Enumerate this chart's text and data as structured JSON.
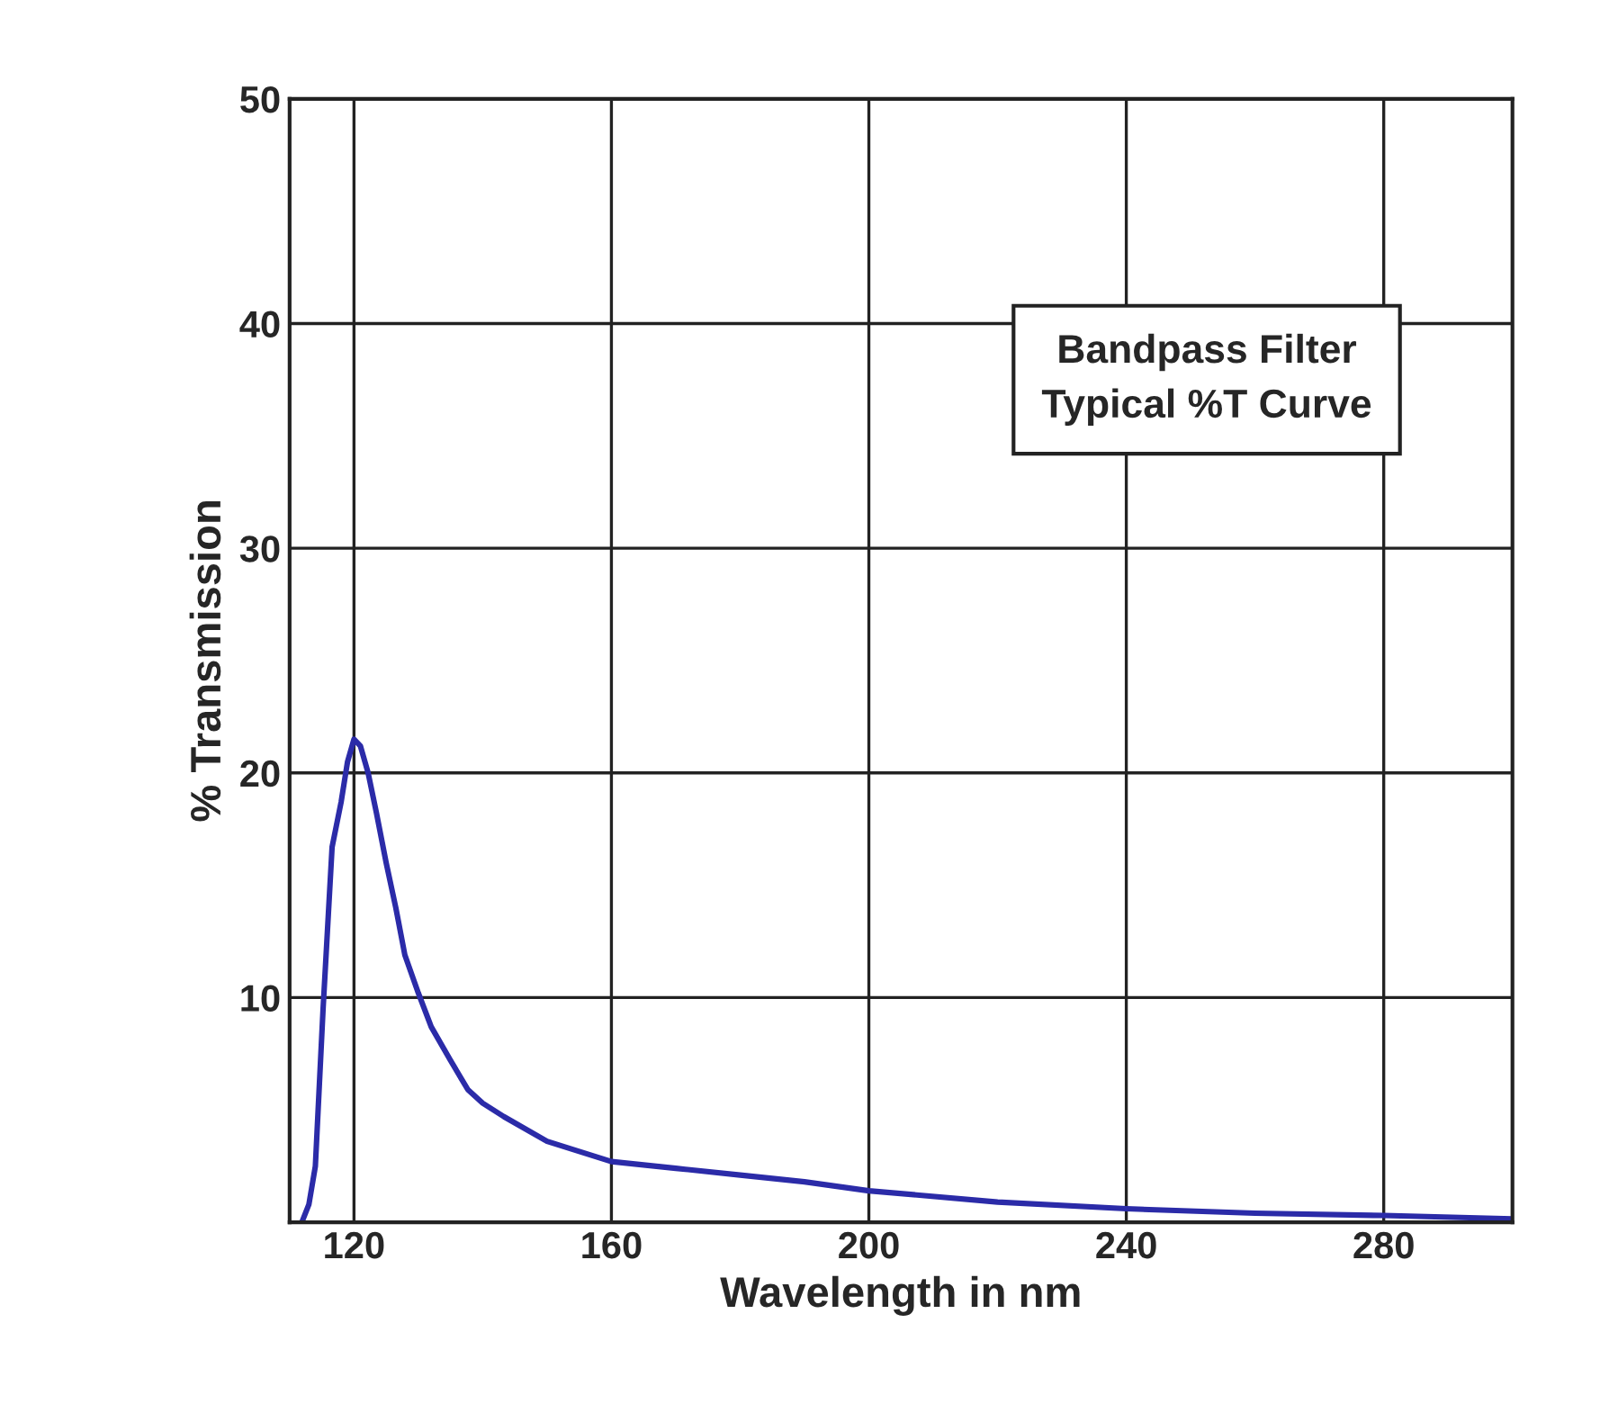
{
  "chart_data": {
    "type": "line",
    "xlabel": "Wavelength in nm",
    "ylabel": "% Transmission",
    "annotations": [
      "Bandpass Filter\nTypical %T Curve"
    ],
    "series": [
      {
        "color": "#2b2ba8",
        "x": [
          111.9,
          113,
          114,
          115.2,
          116.6,
          118,
          119,
          120,
          121,
          122.2,
          123.5,
          125,
          126.5,
          127.9,
          130,
          132,
          135,
          137.7,
          140,
          143.3,
          150,
          160,
          170,
          180,
          190,
          200,
          220,
          240,
          260,
          280,
          300
        ],
        "values": [
          0,
          0.8,
          2.5,
          9.5,
          16.7,
          18.7,
          20.5,
          21.5,
          21.2,
          20,
          18.2,
          16,
          14,
          11.9,
          10.2,
          8.7,
          7.2,
          5.9,
          5.3,
          4.7,
          3.6,
          2.7,
          2.4,
          2.1,
          1.8,
          1.4,
          0.9,
          0.6,
          0.4,
          0.3,
          0.15
        ]
      }
    ],
    "xlim": [
      110,
      300
    ],
    "ylim": [
      0,
      50
    ],
    "xticks": [
      120,
      160,
      200,
      240,
      280
    ],
    "yticks": [
      {
        "value": 0,
        "label": null
      },
      10,
      20,
      30,
      40,
      50
    ],
    "grid": true,
    "legend": false
  }
}
